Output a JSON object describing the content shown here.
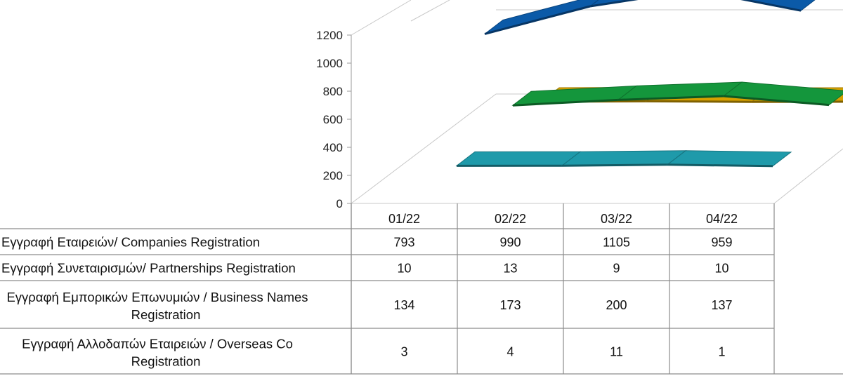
{
  "chart_data": {
    "type": "line",
    "categories": [
      "01/22",
      "02/22",
      "03/22",
      "04/22"
    ],
    "series": [
      {
        "name": "Εγγραφή Εταιρειών/ Companies Registration",
        "values": [
          793,
          990,
          1105,
          959
        ],
        "color": "#0b5aa8"
      },
      {
        "name": "Εγγραφή Συνεταιρισμών/ Partnerships Registration",
        "values": [
          10,
          13,
          9,
          10
        ],
        "color": "#d6a100"
      },
      {
        "name": "Εγγραφή Εμπορικών Επωνυμιών / Business Names Registration",
        "values": [
          134,
          173,
          200,
          137
        ],
        "color": "#14963c"
      },
      {
        "name": "Εγγραφή Αλλοδαπών Εταιρειών / Overseas Co Registration",
        "values": [
          3,
          4,
          11,
          1
        ],
        "color": "#1f9aaa"
      }
    ],
    "yticks": [
      "0",
      "200",
      "400",
      "600",
      "800",
      "1000",
      "1200"
    ],
    "ylim": [
      0,
      1200
    ],
    "grid": false,
    "legend": "data-table"
  }
}
